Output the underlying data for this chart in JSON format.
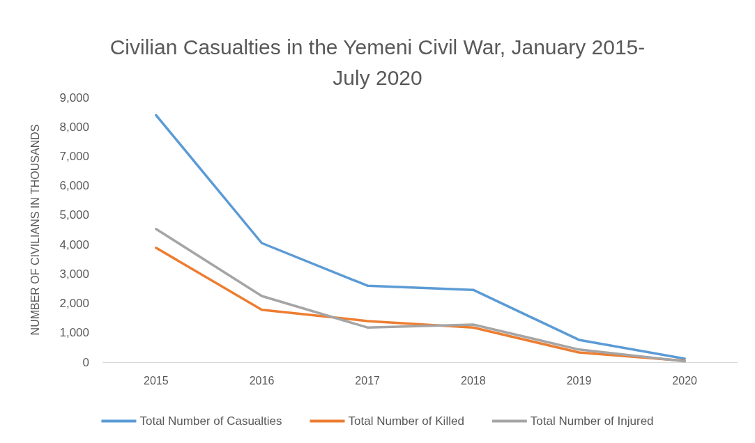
{
  "chart_data": {
    "type": "line",
    "title": "Civilian Casualties in the Yemeni Civil War, January 2015-\nJuly 2020",
    "ylabel": "NUMBER OF CIVILIANS IN THOUSANDS",
    "categories": [
      "2015",
      "2016",
      "2017",
      "2018",
      "2019",
      "2020"
    ],
    "series": [
      {
        "name": "Total Number of Casualties",
        "color": "#5b9bd5",
        "values": [
          8400,
          4050,
          2600,
          2460,
          760,
          120
        ]
      },
      {
        "name": "Total Number of Killed",
        "color": "#ed7d31",
        "values": [
          3890,
          1780,
          1400,
          1180,
          330,
          50
        ]
      },
      {
        "name": "Total Number of Injured",
        "color": "#a5a5a5",
        "values": [
          4530,
          2250,
          1180,
          1280,
          430,
          30
        ]
      }
    ],
    "ylim": [
      0,
      9000
    ],
    "yticks": [
      0,
      {
        "value": 1000,
        "label": "1,000"
      },
      {
        "value": 2000,
        "label": "2,000"
      },
      {
        "value": 3000,
        "label": "3,000"
      },
      {
        "value": 4000,
        "label": "4,000"
      },
      {
        "value": 5000,
        "label": "5,000"
      },
      {
        "value": 6000,
        "label": "6,000"
      },
      {
        "value": 7000,
        "label": "7,000"
      },
      {
        "value": 8000,
        "label": "8,000"
      },
      {
        "value": 9000,
        "label": "9,000"
      }
    ],
    "grid": false,
    "legend": "bottom",
    "marker": "none",
    "line_style": "solid"
  }
}
